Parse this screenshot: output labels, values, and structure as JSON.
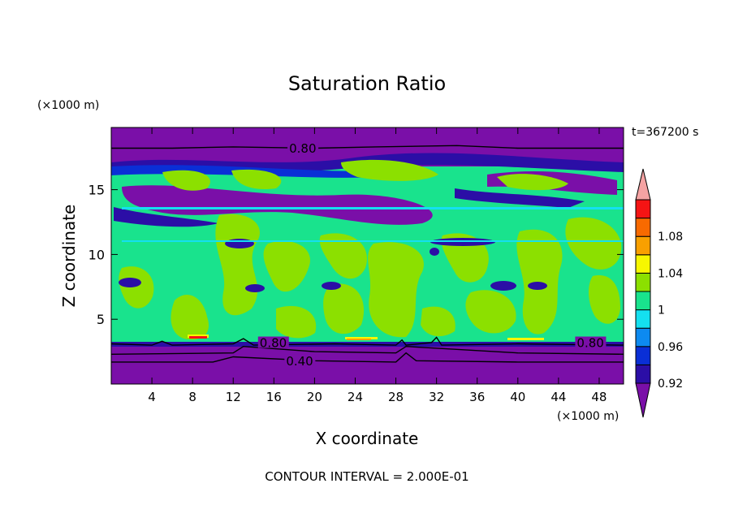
{
  "chart_data": {
    "type": "heatmap",
    "title": "Saturation Ratio",
    "xlabel": "X coordinate",
    "ylabel": "Z coordinate",
    "x_unit": "(×1000 m)",
    "y_unit": "(×1000 m)",
    "time_label": "t=367200 s",
    "footer": "CONTOUR INTERVAL = 2.000E-01",
    "xlim": [
      0,
      50.4
    ],
    "ylim": [
      0,
      19.8
    ],
    "x_ticks": [
      4,
      8,
      12,
      16,
      20,
      24,
      28,
      32,
      36,
      40,
      44,
      48
    ],
    "y_ticks": [
      5,
      10,
      15
    ],
    "colorbar": {
      "labels": [
        "1.08",
        "1.04",
        "1",
        "0.96",
        "0.92"
      ],
      "levels": [
        0.92,
        0.94,
        0.96,
        0.98,
        1.0,
        1.02,
        1.04,
        1.06,
        1.08,
        1.1
      ],
      "colors": [
        "#7a0fa8",
        "#2b0ea6",
        "#0a2fd6",
        "#0d8af0",
        "#14e0f0",
        "#19e38d",
        "#8ce000",
        "#f7f700",
        "#f9a000",
        "#f86a00",
        "#f51414",
        "#f5a3a3"
      ]
    },
    "contour_labels": [
      {
        "text": "0.80",
        "x": 17.5,
        "z": 18.1
      },
      {
        "text": "0.80",
        "x": 14.6,
        "z": 3.1
      },
      {
        "text": "0.80",
        "x": 45.8,
        "z": 3.1
      },
      {
        "text": "0.40",
        "x": 17.2,
        "z": 1.7
      }
    ]
  }
}
